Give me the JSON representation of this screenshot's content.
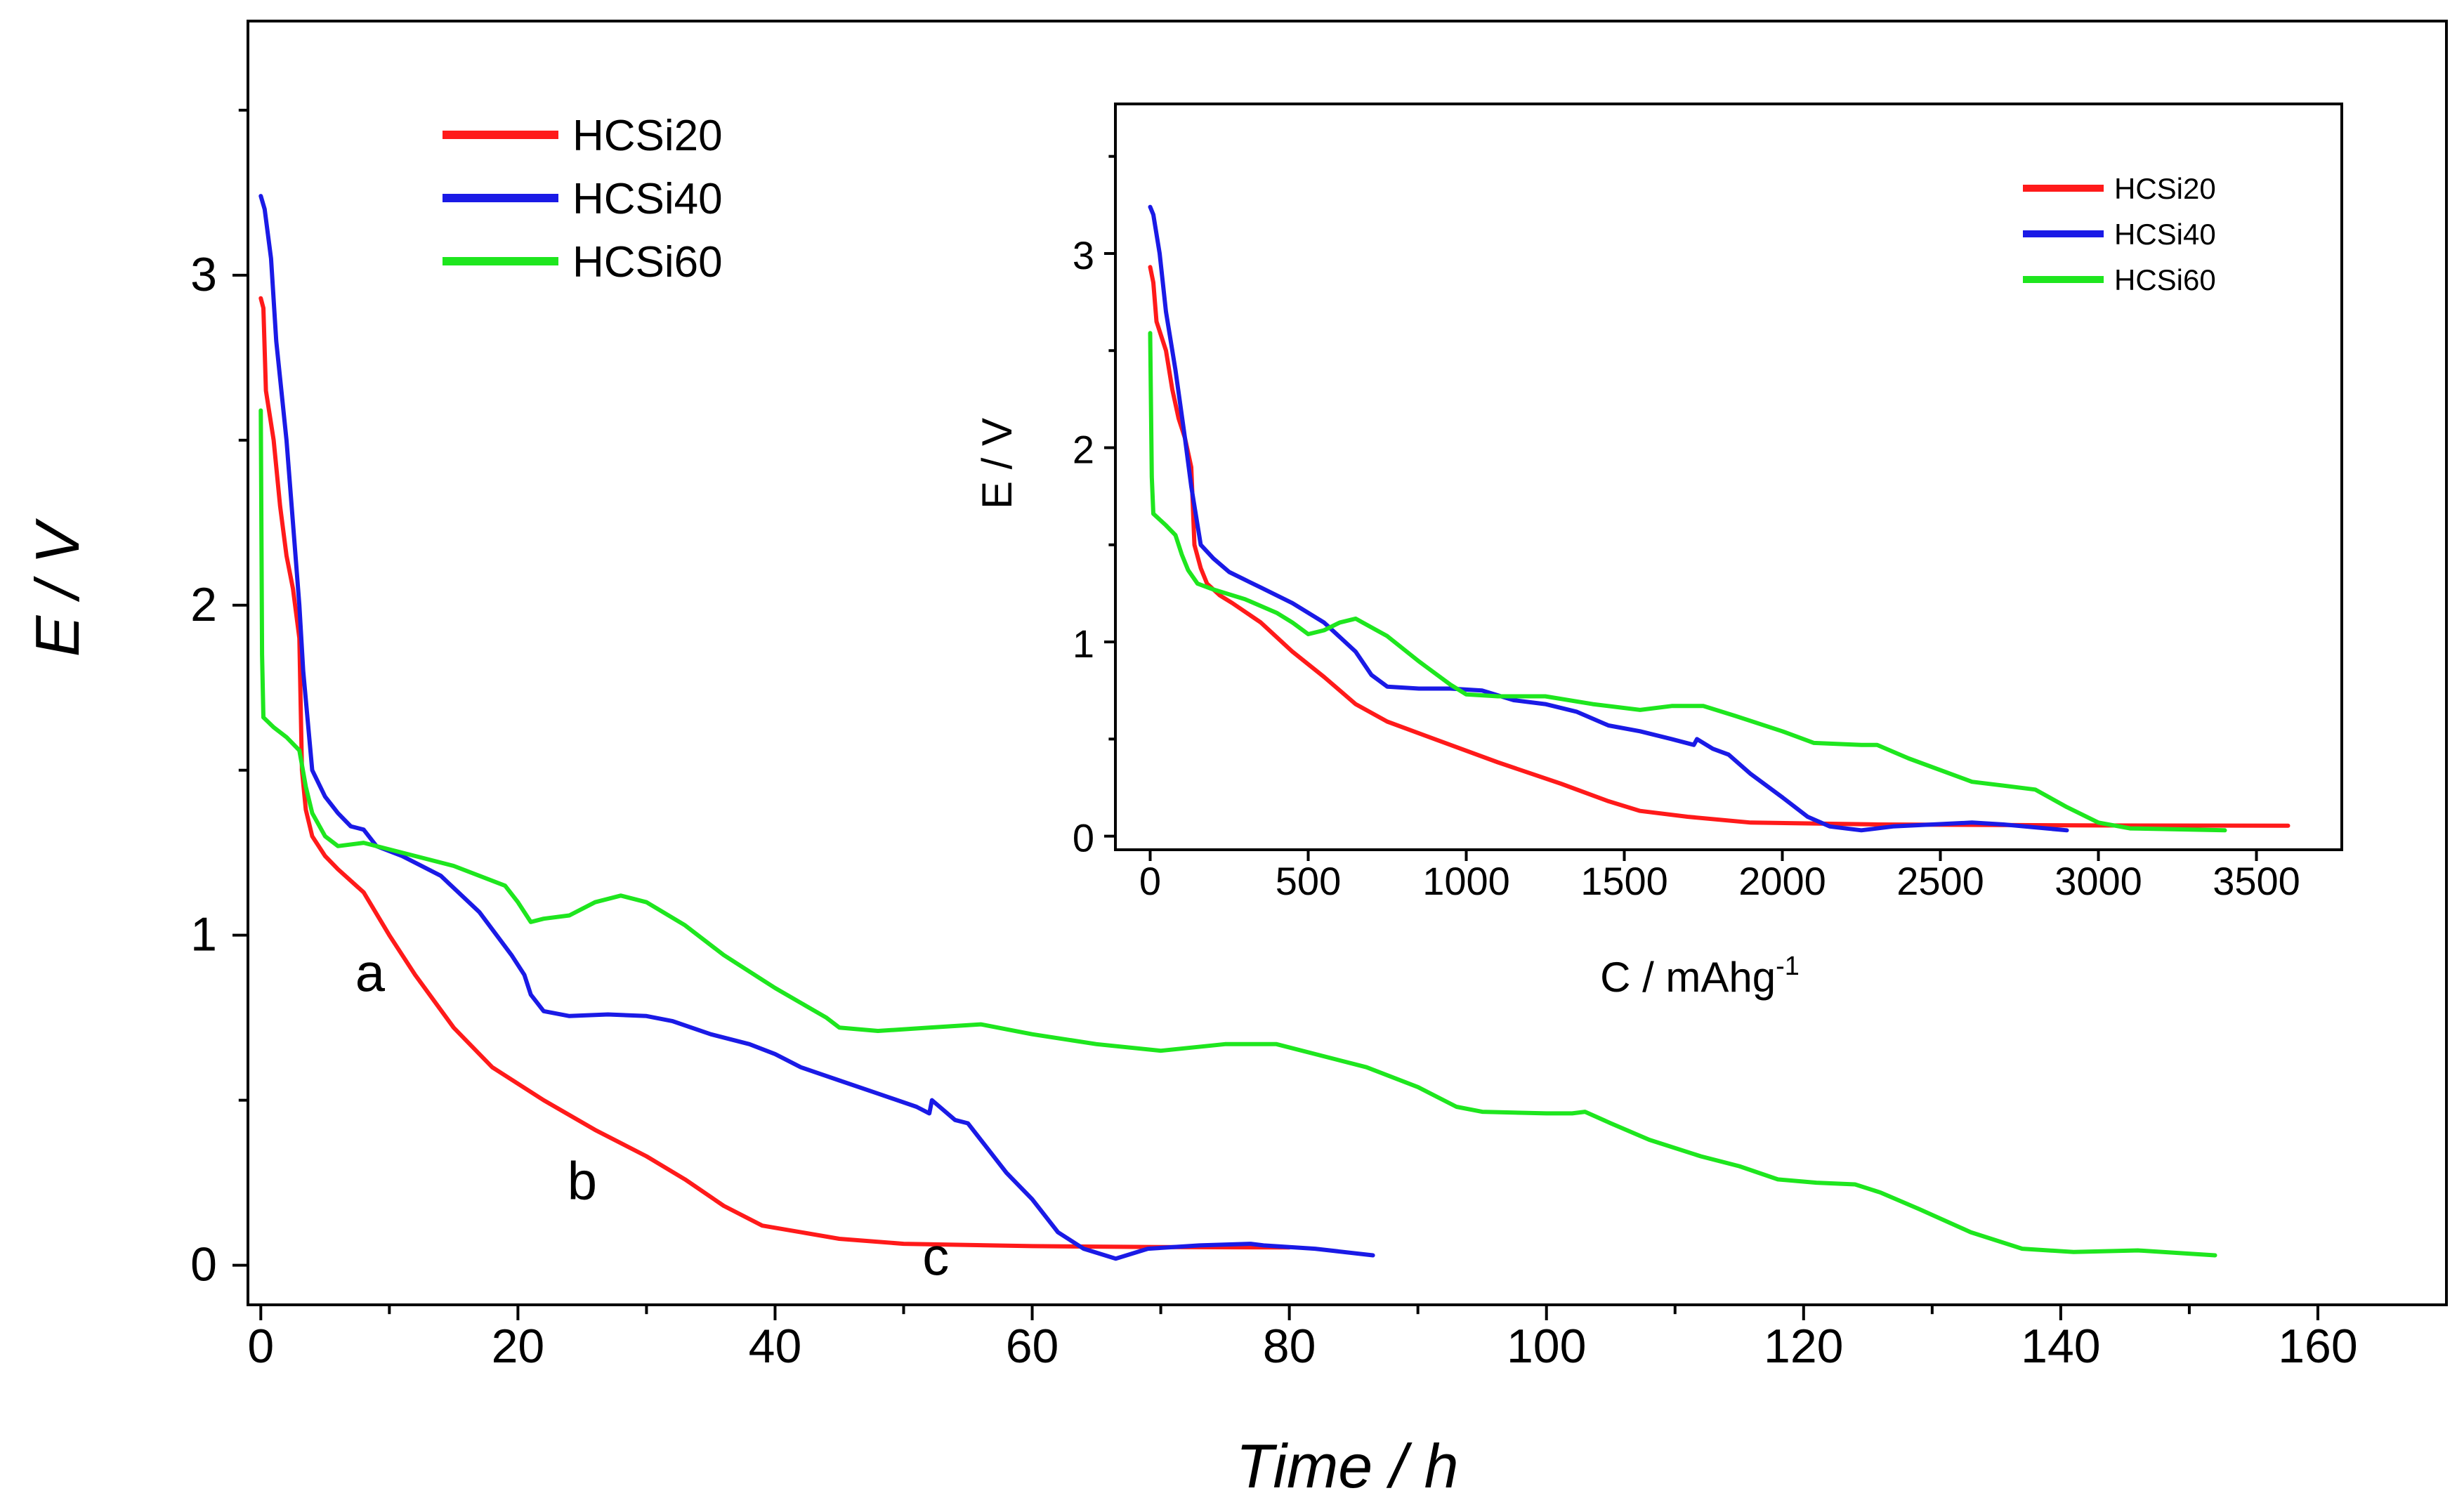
{
  "chart_data": [
    {
      "type": "line",
      "name": "main",
      "xlabel": "Time / h",
      "ylabel": "E / V",
      "xlim": [
        -1,
        170
      ],
      "ylim": [
        -0.12,
        3.77
      ],
      "xticks": [
        0,
        20,
        40,
        60,
        80,
        100,
        120,
        140,
        160
      ],
      "xtick_labels": [
        "0",
        "20",
        "40",
        "60",
        "80",
        "100",
        "120",
        "140",
        "160"
      ],
      "yticks": [
        0,
        1,
        2,
        3
      ],
      "ytick_labels": [
        "0",
        "1",
        "2",
        "3"
      ],
      "legend": {
        "position": "top-left",
        "entries": [
          "HCSi20",
          "HCSi40",
          "HCSi60"
        ]
      },
      "annotations": [
        {
          "text": "a",
          "x": 8.5,
          "y": 0.83
        },
        {
          "text": "b",
          "x": 25,
          "y": 0.2
        },
        {
          "text": "c",
          "x": 52.5,
          "y": -0.03
        }
      ],
      "series": [
        {
          "name": "HCSi20",
          "color": "#ff1a1a",
          "points": [
            [
              0,
              2.93
            ],
            [
              0.2,
              2.9
            ],
            [
              0.4,
              2.65
            ],
            [
              1,
              2.5
            ],
            [
              1.5,
              2.3
            ],
            [
              2,
              2.15
            ],
            [
              2.5,
              2.05
            ],
            [
              3,
              1.9
            ],
            [
              3.2,
              1.5
            ],
            [
              3.5,
              1.38
            ],
            [
              4,
              1.3
            ],
            [
              5,
              1.24
            ],
            [
              6,
              1.2
            ],
            [
              8,
              1.13
            ],
            [
              10,
              1.0
            ],
            [
              12,
              0.88
            ],
            [
              15,
              0.72
            ],
            [
              18,
              0.6
            ],
            [
              22,
              0.5
            ],
            [
              26,
              0.41
            ],
            [
              30,
              0.33
            ],
            [
              33,
              0.26
            ],
            [
              36,
              0.18
            ],
            [
              39,
              0.12
            ],
            [
              42,
              0.1
            ],
            [
              45,
              0.08
            ],
            [
              50,
              0.065
            ],
            [
              60,
              0.058
            ],
            [
              70,
              0.055
            ],
            [
              80,
              0.054
            ]
          ]
        },
        {
          "name": "HCSi40",
          "color": "#1a1ae6",
          "points": [
            [
              0,
              3.24
            ],
            [
              0.3,
              3.2
            ],
            [
              0.8,
              3.05
            ],
            [
              1.2,
              2.8
            ],
            [
              2,
              2.5
            ],
            [
              2.6,
              2.2
            ],
            [
              3,
              2.0
            ],
            [
              3.3,
              1.8
            ],
            [
              4,
              1.5
            ],
            [
              5,
              1.42
            ],
            [
              6,
              1.37
            ],
            [
              7,
              1.33
            ],
            [
              8,
              1.32
            ],
            [
              9,
              1.27
            ],
            [
              11,
              1.24
            ],
            [
              14,
              1.18
            ],
            [
              17,
              1.07
            ],
            [
              19.5,
              0.94
            ],
            [
              20.5,
              0.88
            ],
            [
              21,
              0.82
            ],
            [
              22,
              0.77
            ],
            [
              24,
              0.755
            ],
            [
              27,
              0.76
            ],
            [
              30,
              0.755
            ],
            [
              32,
              0.74
            ],
            [
              35,
              0.7
            ],
            [
              38,
              0.67
            ],
            [
              40,
              0.64
            ],
            [
              42,
              0.6
            ],
            [
              45,
              0.56
            ],
            [
              48,
              0.52
            ],
            [
              51,
              0.48
            ],
            [
              52,
              0.46
            ],
            [
              52.2,
              0.5
            ],
            [
              54,
              0.44
            ],
            [
              55,
              0.43
            ],
            [
              56,
              0.38
            ],
            [
              58,
              0.28
            ],
            [
              60,
              0.2
            ],
            [
              62,
              0.1
            ],
            [
              64,
              0.05
            ],
            [
              66.5,
              0.02
            ],
            [
              69,
              0.05
            ],
            [
              73,
              0.06
            ],
            [
              77,
              0.065
            ],
            [
              78,
              0.06
            ],
            [
              82,
              0.05
            ],
            [
              86.5,
              0.03
            ]
          ]
        },
        {
          "name": "HCSi60",
          "color": "#1ee61e",
          "points": [
            [
              0,
              2.59
            ],
            [
              0.1,
              1.85
            ],
            [
              0.2,
              1.66
            ],
            [
              1,
              1.63
            ],
            [
              2,
              1.6
            ],
            [
              3,
              1.56
            ],
            [
              3.5,
              1.45
            ],
            [
              4,
              1.37
            ],
            [
              5,
              1.3
            ],
            [
              6,
              1.27
            ],
            [
              8,
              1.28
            ],
            [
              10,
              1.26
            ],
            [
              15,
              1.21
            ],
            [
              19,
              1.15
            ],
            [
              20,
              1.1
            ],
            [
              21,
              1.04
            ],
            [
              22,
              1.05
            ],
            [
              24,
              1.06
            ],
            [
              26,
              1.1
            ],
            [
              28,
              1.12
            ],
            [
              30,
              1.1
            ],
            [
              33,
              1.03
            ],
            [
              36,
              0.94
            ],
            [
              40,
              0.84
            ],
            [
              44,
              0.75
            ],
            [
              45,
              0.72
            ],
            [
              48,
              0.71
            ],
            [
              52,
              0.72
            ],
            [
              56,
              0.73
            ],
            [
              60,
              0.7
            ],
            [
              65,
              0.67
            ],
            [
              70,
              0.65
            ],
            [
              75,
              0.67
            ],
            [
              79,
              0.67
            ],
            [
              82,
              0.64
            ],
            [
              86,
              0.6
            ],
            [
              90,
              0.54
            ],
            [
              93,
              0.48
            ],
            [
              95,
              0.465
            ],
            [
              100,
              0.46
            ],
            [
              102,
              0.46
            ],
            [
              103,
              0.465
            ],
            [
              105,
              0.43
            ],
            [
              108,
              0.38
            ],
            [
              112,
              0.33
            ],
            [
              115,
              0.3
            ],
            [
              118,
              0.26
            ],
            [
              121,
              0.25
            ],
            [
              124,
              0.245
            ],
            [
              126,
              0.22
            ],
            [
              129,
              0.17
            ],
            [
              133,
              0.1
            ],
            [
              137,
              0.05
            ],
            [
              141,
              0.04
            ],
            [
              146,
              0.045
            ],
            [
              152,
              0.03
            ]
          ]
        }
      ]
    },
    {
      "type": "line",
      "name": "inset",
      "xlabel": "C / mAhg",
      "xlabel_superscript": "-1",
      "ylabel": "E / V",
      "xlim": [
        -110,
        3770
      ],
      "ylim": [
        -0.07,
        3.77
      ],
      "xticks": [
        0,
        500,
        1000,
        1500,
        2000,
        2500,
        3000,
        3500
      ],
      "xtick_labels": [
        "0",
        "500",
        "1000",
        "1500",
        "2000",
        "2500",
        "3000",
        "3500"
      ],
      "yticks": [
        0,
        1,
        2,
        3
      ],
      "ytick_labels": [
        "0",
        "1",
        "2",
        "3"
      ],
      "legend": {
        "position": "top-right",
        "entries": [
          "HCSi20",
          "HCSi40",
          "HCSi60"
        ]
      },
      "series": [
        {
          "name": "HCSi20",
          "color": "#ff1a1a",
          "points": [
            [
              0,
              2.93
            ],
            [
              10,
              2.85
            ],
            [
              20,
              2.65
            ],
            [
              50,
              2.5
            ],
            [
              70,
              2.3
            ],
            [
              90,
              2.15
            ],
            [
              110,
              2.05
            ],
            [
              130,
              1.9
            ],
            [
              140,
              1.5
            ],
            [
              160,
              1.38
            ],
            [
              180,
              1.3
            ],
            [
              220,
              1.24
            ],
            [
              260,
              1.2
            ],
            [
              350,
              1.1
            ],
            [
              450,
              0.95
            ],
            [
              550,
              0.82
            ],
            [
              650,
              0.68
            ],
            [
              750,
              0.59
            ],
            [
              900,
              0.5
            ],
            [
              1100,
              0.38
            ],
            [
              1300,
              0.27
            ],
            [
              1450,
              0.18
            ],
            [
              1550,
              0.13
            ],
            [
              1700,
              0.1
            ],
            [
              1900,
              0.07
            ],
            [
              2300,
              0.06
            ],
            [
              3000,
              0.055
            ],
            [
              3600,
              0.054
            ]
          ]
        },
        {
          "name": "HCSi40",
          "color": "#1a1ae6",
          "points": [
            [
              0,
              3.24
            ],
            [
              10,
              3.2
            ],
            [
              30,
              3.0
            ],
            [
              50,
              2.7
            ],
            [
              80,
              2.4
            ],
            [
              110,
              2.05
            ],
            [
              130,
              1.8
            ],
            [
              160,
              1.5
            ],
            [
              200,
              1.43
            ],
            [
              250,
              1.36
            ],
            [
              300,
              1.32
            ],
            [
              350,
              1.28
            ],
            [
              450,
              1.2
            ],
            [
              550,
              1.1
            ],
            [
              650,
              0.95
            ],
            [
              700,
              0.83
            ],
            [
              750,
              0.77
            ],
            [
              850,
              0.76
            ],
            [
              950,
              0.76
            ],
            [
              1050,
              0.75
            ],
            [
              1150,
              0.7
            ],
            [
              1250,
              0.68
            ],
            [
              1350,
              0.64
            ],
            [
              1450,
              0.57
            ],
            [
              1550,
              0.54
            ],
            [
              1650,
              0.5
            ],
            [
              1720,
              0.47
            ],
            [
              1730,
              0.5
            ],
            [
              1780,
              0.45
            ],
            [
              1830,
              0.42
            ],
            [
              1900,
              0.32
            ],
            [
              2000,
              0.2
            ],
            [
              2080,
              0.1
            ],
            [
              2150,
              0.05
            ],
            [
              2250,
              0.03
            ],
            [
              2350,
              0.05
            ],
            [
              2600,
              0.07
            ],
            [
              2700,
              0.06
            ],
            [
              2900,
              0.03
            ]
          ]
        },
        {
          "name": "HCSi60",
          "color": "#1ee61e",
          "points": [
            [
              0,
              2.59
            ],
            [
              5,
              1.85
            ],
            [
              10,
              1.66
            ],
            [
              50,
              1.6
            ],
            [
              80,
              1.55
            ],
            [
              100,
              1.45
            ],
            [
              120,
              1.37
            ],
            [
              150,
              1.3
            ],
            [
              200,
              1.27
            ],
            [
              300,
              1.22
            ],
            [
              400,
              1.15
            ],
            [
              450,
              1.1
            ],
            [
              500,
              1.04
            ],
            [
              550,
              1.06
            ],
            [
              600,
              1.1
            ],
            [
              650,
              1.12
            ],
            [
              750,
              1.03
            ],
            [
              850,
              0.9
            ],
            [
              950,
              0.78
            ],
            [
              1000,
              0.73
            ],
            [
              1100,
              0.72
            ],
            [
              1250,
              0.72
            ],
            [
              1400,
              0.68
            ],
            [
              1550,
              0.65
            ],
            [
              1650,
              0.67
            ],
            [
              1750,
              0.67
            ],
            [
              1850,
              0.62
            ],
            [
              2000,
              0.54
            ],
            [
              2100,
              0.48
            ],
            [
              2250,
              0.47
            ],
            [
              2300,
              0.47
            ],
            [
              2400,
              0.4
            ],
            [
              2600,
              0.28
            ],
            [
              2700,
              0.26
            ],
            [
              2800,
              0.24
            ],
            [
              2900,
              0.15
            ],
            [
              3000,
              0.07
            ],
            [
              3100,
              0.04
            ],
            [
              3400,
              0.03
            ]
          ]
        }
      ]
    }
  ]
}
